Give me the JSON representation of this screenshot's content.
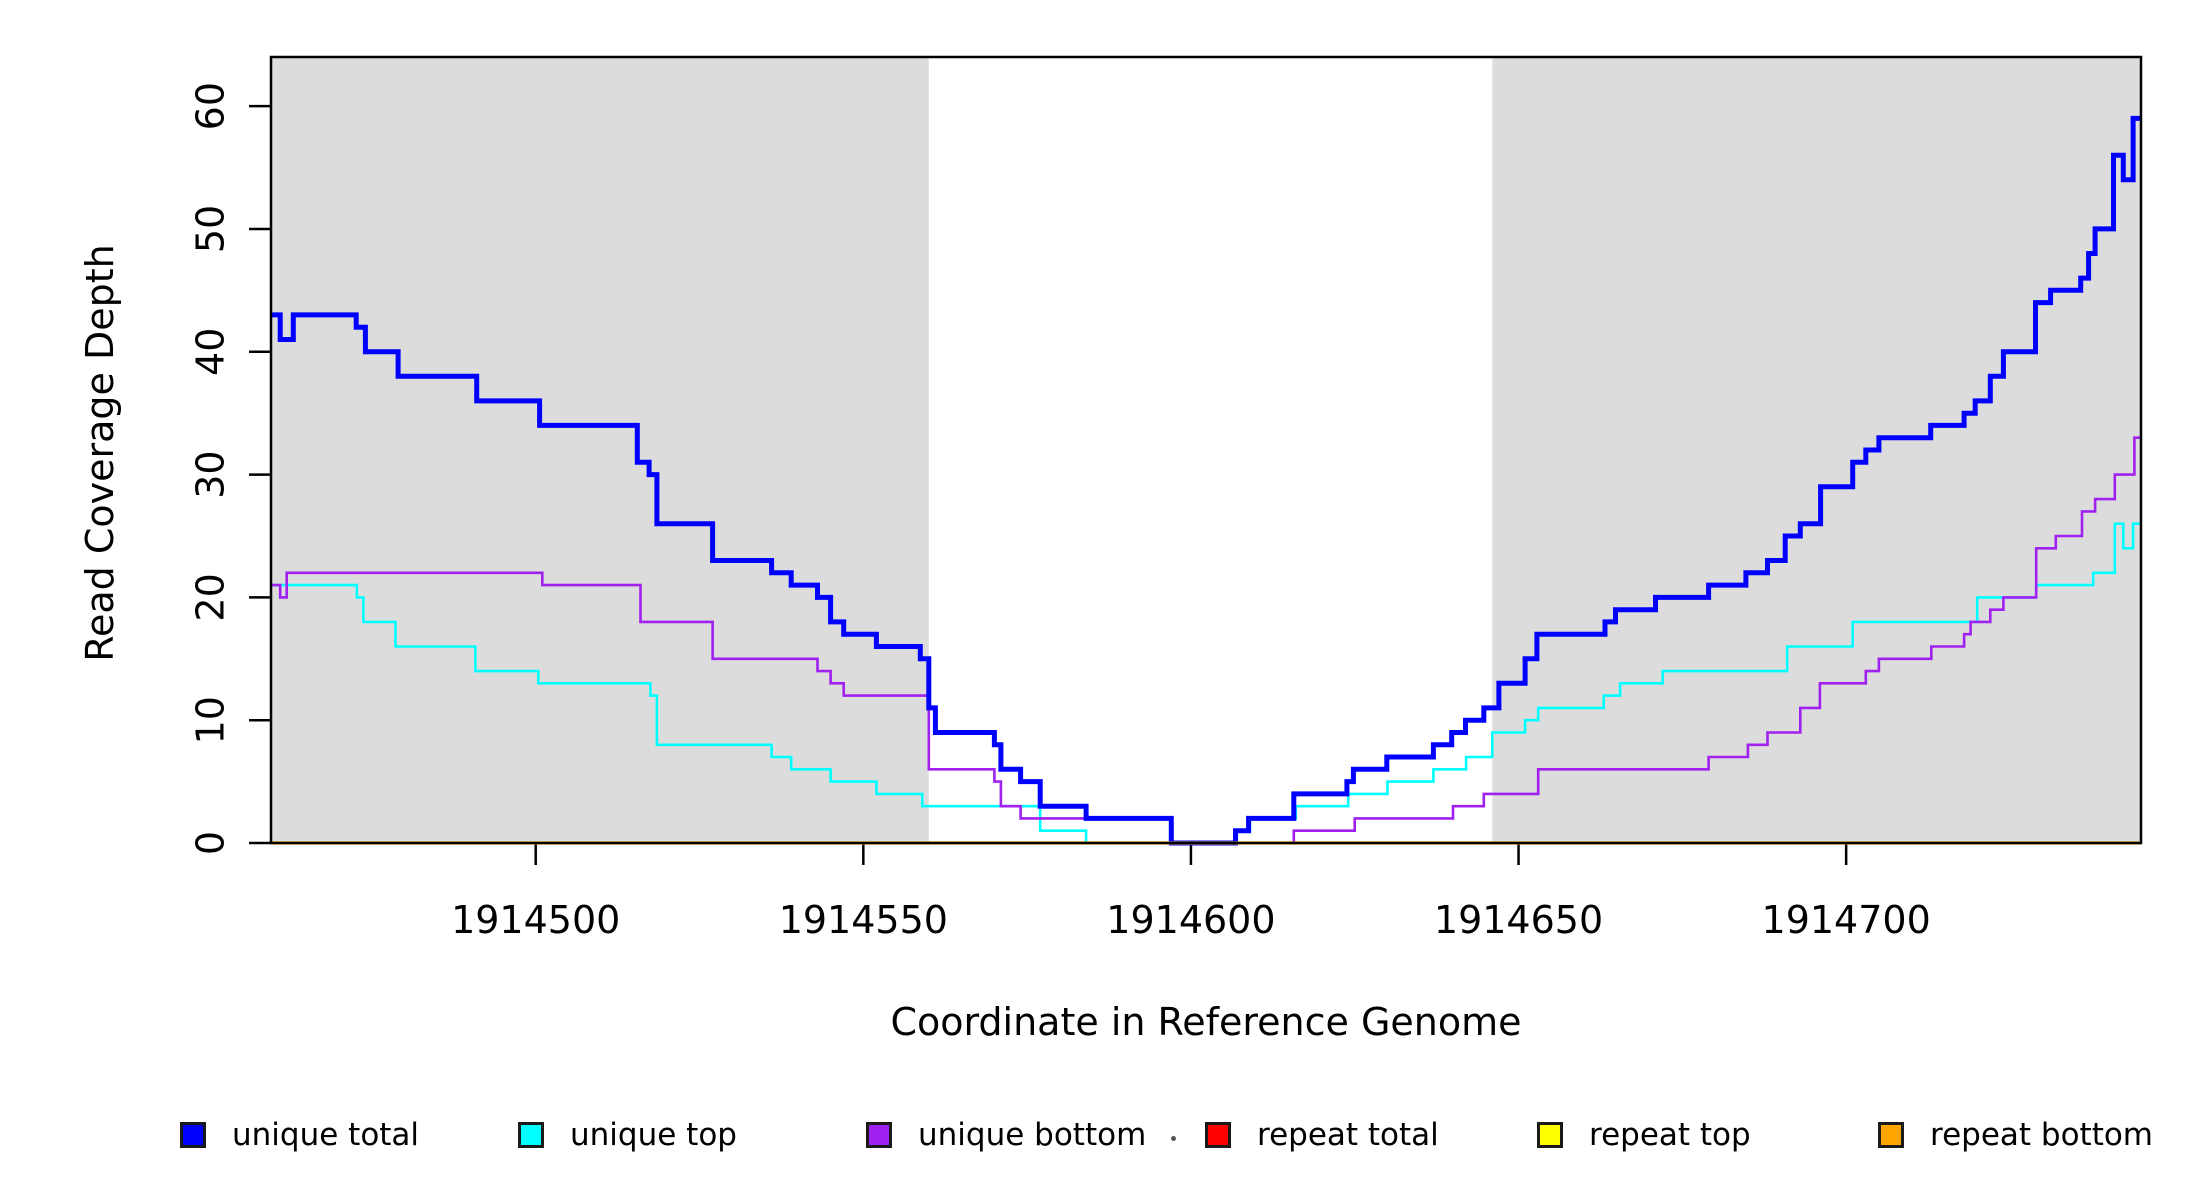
{
  "chart_data": {
    "type": "line",
    "subtype": "step",
    "title": "",
    "xlabel": "Coordinate in Reference Genome",
    "ylabel": "Read Coverage Depth",
    "xlim": [
      1914459.6,
      1914745.0
    ],
    "ylim": [
      0,
      64
    ],
    "x_ticks": [
      1914500,
      1914550,
      1914600,
      1914650,
      1914700
    ],
    "x_tick_labels": [
      "1914500",
      "1914550",
      "1914600",
      "1914650",
      "1914700"
    ],
    "y_ticks": [
      0,
      10,
      20,
      30,
      40,
      50,
      60
    ],
    "y_tick_labels": [
      "0",
      "10",
      "20",
      "30",
      "40",
      "50",
      "60"
    ],
    "grid": false,
    "background_color": "#FFFFFF",
    "frame_color": "#000000",
    "shaded_regions": [
      {
        "name": "left-gray-flank",
        "x0": 1914459.6,
        "x1": 1914560,
        "color": "#DCDCDC"
      },
      {
        "name": "right-gray-flank",
        "x0": 1914646,
        "x1": 1914745.0,
        "color": "#DCDCDC"
      }
    ],
    "legend_position": "bottom",
    "series": [
      {
        "name": "unique total",
        "color": "#0000FF",
        "line_width": 5,
        "steps": [
          [
            1914459.6,
            43
          ],
          [
            1914461,
            41
          ],
          [
            1914463,
            43
          ],
          [
            1914472.6,
            42
          ],
          [
            1914474,
            40
          ],
          [
            1914479,
            38
          ],
          [
            1914491,
            36
          ],
          [
            1914500.6,
            34
          ],
          [
            1914515.5,
            31
          ],
          [
            1914517.3,
            30
          ],
          [
            1914518.5,
            26
          ],
          [
            1914527,
            23
          ],
          [
            1914536,
            22
          ],
          [
            1914539,
            21
          ],
          [
            1914543,
            20
          ],
          [
            1914545,
            18
          ],
          [
            1914547,
            17
          ],
          [
            1914552,
            16
          ],
          [
            1914558.7,
            15
          ],
          [
            1914560,
            11
          ],
          [
            1914561,
            9
          ],
          [
            1914570,
            8
          ],
          [
            1914571,
            6
          ],
          [
            1914574,
            5
          ],
          [
            1914577,
            3
          ],
          [
            1914584,
            2
          ],
          [
            1914597,
            0
          ],
          [
            1914606.8,
            1
          ],
          [
            1914608.8,
            2
          ],
          [
            1914615.7,
            4
          ],
          [
            1914623.8,
            5
          ],
          [
            1914624.8,
            6
          ],
          [
            1914629.9,
            7
          ],
          [
            1914637,
            8
          ],
          [
            1914639.8,
            9
          ],
          [
            1914641.9,
            10
          ],
          [
            1914644.7,
            11
          ],
          [
            1914647,
            13
          ],
          [
            1914651,
            15
          ],
          [
            1914652.8,
            17
          ],
          [
            1914663.2,
            18
          ],
          [
            1914664.8,
            19
          ],
          [
            1914670.9,
            20
          ],
          [
            1914679,
            21
          ],
          [
            1914684.7,
            22
          ],
          [
            1914688,
            23
          ],
          [
            1914690.7,
            25
          ],
          [
            1914693,
            26
          ],
          [
            1914696.1,
            29
          ],
          [
            1914701,
            31
          ],
          [
            1914703,
            32
          ],
          [
            1914705,
            33
          ],
          [
            1914712.9,
            34
          ],
          [
            1914718,
            35
          ],
          [
            1914719.7,
            36
          ],
          [
            1914722,
            38
          ],
          [
            1914724,
            40
          ],
          [
            1914728.9,
            44
          ],
          [
            1914731.2,
            45
          ],
          [
            1914735.8,
            46
          ],
          [
            1914737,
            48
          ],
          [
            1914738,
            50
          ],
          [
            1914740.8,
            56
          ],
          [
            1914742.3,
            54
          ],
          [
            1914743.8,
            59
          ]
        ]
      },
      {
        "name": "unique top",
        "color": "#00FFFF",
        "line_width": 2.6,
        "steps": [
          [
            1914459.6,
            21
          ],
          [
            1914472.7,
            20
          ],
          [
            1914473.7,
            18
          ],
          [
            1914478.6,
            16
          ],
          [
            1914490.8,
            14
          ],
          [
            1914500.4,
            13
          ],
          [
            1914517.5,
            12
          ],
          [
            1914518.5,
            8
          ],
          [
            1914536,
            7
          ],
          [
            1914539,
            6
          ],
          [
            1914545,
            5
          ],
          [
            1914552,
            4
          ],
          [
            1914559,
            3
          ],
          [
            1914577,
            1
          ],
          [
            1914584,
            0
          ],
          [
            1914607,
            1
          ],
          [
            1914609,
            2
          ],
          [
            1914616,
            3
          ],
          [
            1914624,
            4
          ],
          [
            1914630,
            5
          ],
          [
            1914637,
            6
          ],
          [
            1914642,
            7
          ],
          [
            1914646,
            9
          ],
          [
            1914651,
            10
          ],
          [
            1914653,
            11
          ],
          [
            1914663,
            12
          ],
          [
            1914665.5,
            13
          ],
          [
            1914672,
            14
          ],
          [
            1914691,
            16
          ],
          [
            1914701,
            18
          ],
          [
            1914720,
            20
          ],
          [
            1914729,
            21
          ],
          [
            1914737.7,
            22
          ],
          [
            1914741,
            26
          ],
          [
            1914742.3,
            24
          ],
          [
            1914743.8,
            26
          ]
        ]
      },
      {
        "name": "unique bottom",
        "color": "#A020F0",
        "line_width": 2.6,
        "steps": [
          [
            1914459.6,
            21
          ],
          [
            1914461,
            20
          ],
          [
            1914462,
            22
          ],
          [
            1914501,
            21
          ],
          [
            1914516,
            18
          ],
          [
            1914527,
            15
          ],
          [
            1914543,
            14
          ],
          [
            1914545,
            13
          ],
          [
            1914547,
            12
          ],
          [
            1914560,
            6
          ],
          [
            1914570,
            5
          ],
          [
            1914571,
            3
          ],
          [
            1914574,
            2
          ],
          [
            1914597,
            0
          ],
          [
            1914615.7,
            1
          ],
          [
            1914625,
            2
          ],
          [
            1914640,
            3
          ],
          [
            1914644.7,
            4
          ],
          [
            1914653,
            6
          ],
          [
            1914679,
            7
          ],
          [
            1914685,
            8
          ],
          [
            1914688,
            9
          ],
          [
            1914693,
            11
          ],
          [
            1914696,
            13
          ],
          [
            1914703,
            14
          ],
          [
            1914705,
            15
          ],
          [
            1914713,
            16
          ],
          [
            1914718,
            17
          ],
          [
            1914719,
            18
          ],
          [
            1914722,
            19
          ],
          [
            1914724,
            20
          ],
          [
            1914729,
            24
          ],
          [
            1914732,
            25
          ],
          [
            1914736,
            27
          ],
          [
            1914738,
            28
          ],
          [
            1914741,
            30
          ],
          [
            1914744,
            33
          ]
        ]
      },
      {
        "name": "repeat total",
        "color": "#FF0000",
        "line_width": 2.6,
        "steps": [
          [
            1914459.6,
            0
          ]
        ]
      },
      {
        "name": "repeat top",
        "color": "#FFFF00",
        "line_width": 2.6,
        "steps": [
          [
            1914459.6,
            0
          ]
        ]
      },
      {
        "name": "repeat bottom",
        "color": "#FFA500",
        "line_width": 3.2,
        "steps": [
          [
            1914459.6,
            0
          ]
        ]
      }
    ],
    "annotations": [
      {
        "text": ".",
        "description": "tiny stray dot just left of the repeat total legend swatch"
      }
    ]
  }
}
